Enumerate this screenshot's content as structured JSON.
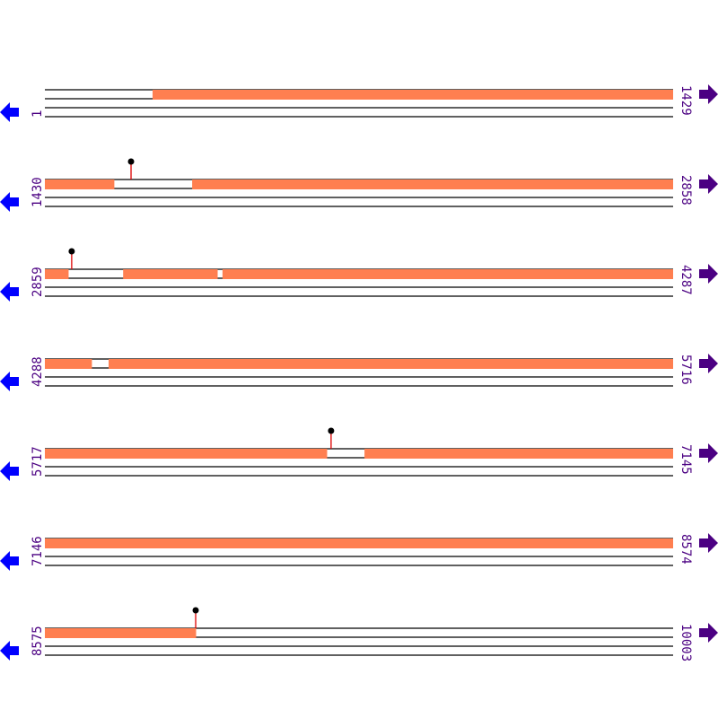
{
  "colors": {
    "feature": "#ff7f50",
    "line": "#000000",
    "label": "#4b0082",
    "left_arrow": "#0000ff",
    "right_arrow": "#4b0082",
    "marker_stem": "#dd0000",
    "marker_head": "#000000"
  },
  "icons": {
    "left": "arrow-left-icon",
    "right": "arrow-right-icon"
  },
  "rows": [
    {
      "start": 1,
      "end": 1429,
      "features": [
        [
          246,
          1429
        ]
      ],
      "markers": []
    },
    {
      "start": 1430,
      "end": 2858,
      "features": [
        [
          1430,
          1587
        ],
        [
          1765,
          2858
        ]
      ],
      "markers": [
        1626
      ]
    },
    {
      "start": 2859,
      "end": 4287,
      "features": [
        [
          2859,
          2912
        ],
        [
          3037,
          3251
        ],
        [
          3263,
          4287
        ]
      ],
      "markers": [
        2920
      ]
    },
    {
      "start": 4288,
      "end": 5716,
      "features": [
        [
          4288,
          4394
        ],
        [
          4433,
          5716
        ]
      ],
      "markers": []
    },
    {
      "start": 5717,
      "end": 7145,
      "features": [
        [
          5717,
          6358
        ],
        [
          6444,
          7145
        ]
      ],
      "markers": [
        6368
      ]
    },
    {
      "start": 7146,
      "end": 8574,
      "features": [
        [
          7146,
          8574
        ]
      ],
      "markers": []
    },
    {
      "start": 8575,
      "end": 10003,
      "features": [
        [
          8575,
          8918
        ]
      ],
      "markers": [
        8918
      ]
    }
  ]
}
